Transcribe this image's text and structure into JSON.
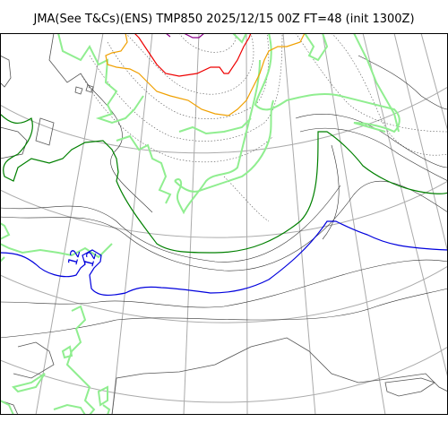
{
  "title": "JMA(See T&Cs)(ENS) TMP850 2025/12/15 00Z FT=48 (init 1300Z)",
  "colors": {
    "coast": "#555555",
    "contour_thin": "#333333",
    "contour_dotted": "#555555",
    "graticule": "#aaaaaa",
    "land_outline": "#90ee90",
    "isotherm_green": "#008000",
    "isotherm_blue": "#0000dd",
    "isotherm_orange": "#f0a000",
    "isotherm_red": "#ee0000",
    "isotherm_purple": "#8b008b"
  },
  "contour_labels": [
    {
      "text": "12"
    },
    {
      "text": "12"
    }
  ]
}
